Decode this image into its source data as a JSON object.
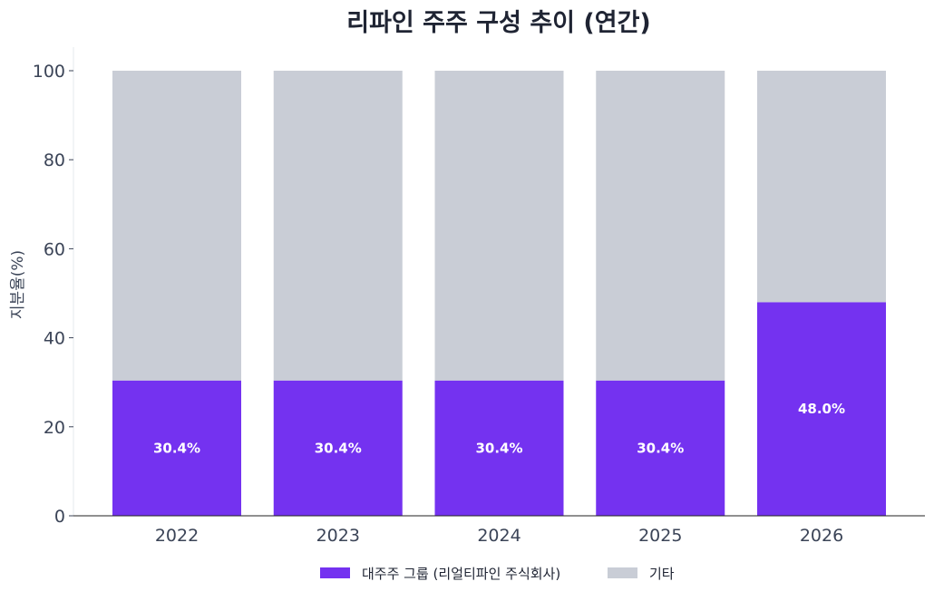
{
  "chart_data": {
    "type": "bar",
    "stacked": true,
    "title": "리파인 주주 구성 추이 (연간)",
    "xlabel": "",
    "ylabel": "지분율(%)",
    "ylim": [
      0,
      100
    ],
    "yticks": [
      0,
      20,
      40,
      60,
      80,
      100
    ],
    "categories": [
      "2022",
      "2023",
      "2024",
      "2025",
      "2026"
    ],
    "series": [
      {
        "name": "대주주 그룹 (리얼티파인 주식회사)",
        "color": "#7432f0",
        "values": [
          30.4,
          30.4,
          30.4,
          30.4,
          48.0
        ],
        "labels": [
          "30.4%",
          "30.4%",
          "30.4%",
          "30.4%",
          "48.0%"
        ]
      },
      {
        "name": "기타",
        "color": "#c9cdd6",
        "values": [
          69.6,
          69.6,
          69.6,
          69.6,
          52.0
        ]
      }
    ],
    "grid": false,
    "legend": "bottom-center"
  }
}
